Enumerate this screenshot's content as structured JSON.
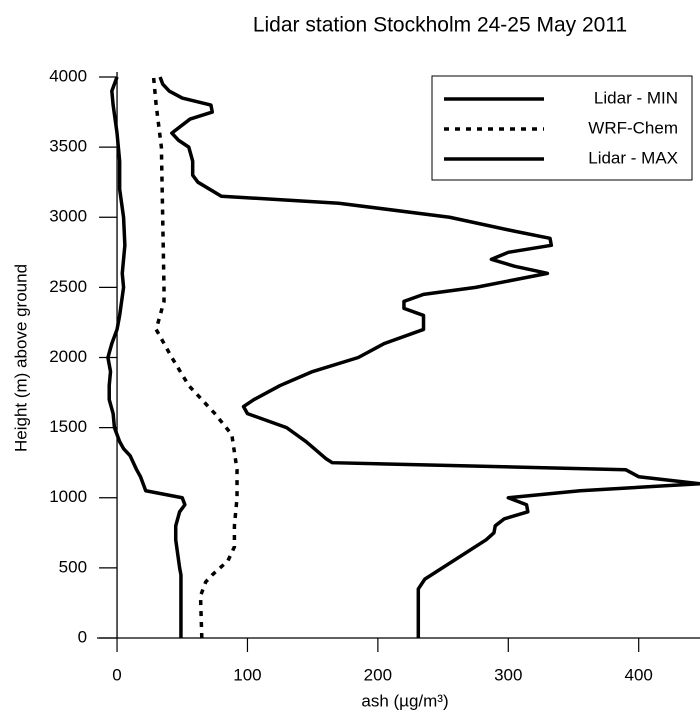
{
  "chart_data": {
    "type": "profile",
    "title": "Lidar station Stockholm 24-25 May 2011",
    "x_label": "ash (µg/m³)",
    "y_label": "Height (m) above ground",
    "xlim": [
      -10,
      447
    ],
    "ylim": [
      0,
      4000
    ],
    "xticks": [
      0,
      100,
      200,
      300,
      400
    ],
    "yticks": [
      0,
      500,
      1000,
      1500,
      2000,
      2500,
      3000,
      3500,
      4000
    ],
    "legend": "top-right",
    "series": [
      {
        "name": "Lidar - MIN",
        "color": "#000000",
        "dash": false,
        "heights": [
          0,
          450,
          500,
          700,
          800,
          900,
          950,
          1000,
          1050,
          1100,
          1150,
          1200,
          1300,
          1350,
          1400,
          1500,
          1600,
          1700,
          1800,
          1900,
          2000,
          2100,
          2200,
          2300,
          2500,
          2600,
          2800,
          3000,
          3200,
          3400,
          3600,
          3800,
          3900,
          4000
        ],
        "values": [
          49,
          49,
          48,
          45,
          45,
          48,
          52,
          50,
          22,
          20,
          18,
          15,
          10,
          5,
          2,
          -2,
          -3,
          -6,
          -6,
          -5,
          -7,
          -4,
          0,
          2,
          5,
          4,
          6,
          5,
          2,
          2,
          0,
          -3,
          -4,
          0
        ]
      },
      {
        "name": "WRF-Chem",
        "color": "#000000",
        "dash": true,
        "heights": [
          0,
          300,
          350,
          400,
          450,
          550,
          650,
          800,
          1000,
          1200,
          1450,
          1600,
          1800,
          2000,
          2200,
          2400,
          2500,
          3000,
          3500,
          3800,
          4000
        ],
        "values": [
          65,
          64,
          66,
          68,
          73,
          85,
          90,
          90,
          92,
          92,
          88,
          75,
          55,
          42,
          30,
          36,
          36,
          35,
          34,
          30,
          28
        ]
      },
      {
        "name": "Lidar - MAX",
        "color": "#000000",
        "dash": false,
        "heights": [
          0,
          350,
          420,
          700,
          750,
          800,
          850,
          900,
          950,
          1000,
          1050,
          1100,
          1150,
          1200,
          1250,
          1280,
          1400,
          1500,
          1600,
          1650,
          1700,
          1800,
          1900,
          2000,
          2100,
          2200,
          2300,
          2350,
          2400,
          2450,
          2500,
          2600,
          2650,
          2700,
          2750,
          2800,
          2850,
          2900,
          3000,
          3100,
          3150,
          3250,
          3300,
          3400,
          3500,
          3550,
          3600,
          3700,
          3750,
          3800,
          3850,
          3900,
          3950,
          4000
        ],
        "values": [
          231,
          231,
          236,
          283,
          289,
          290,
          297,
          315,
          314,
          300,
          355,
          447,
          400,
          390,
          165,
          160,
          145,
          130,
          100,
          97,
          105,
          125,
          150,
          185,
          205,
          235,
          235,
          220,
          220,
          235,
          275,
          330,
          305,
          287,
          300,
          333,
          332,
          305,
          255,
          170,
          80,
          62,
          58,
          58,
          55,
          47,
          42,
          56,
          73,
          72,
          50,
          40,
          35,
          33
        ]
      }
    ]
  }
}
